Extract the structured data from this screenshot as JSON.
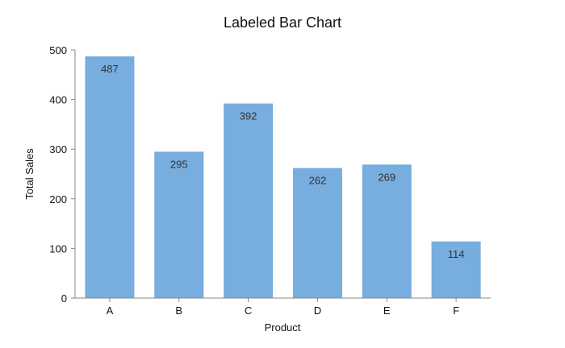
{
  "chart_data": {
    "type": "bar",
    "title": "Labeled Bar Chart",
    "xlabel": "Product",
    "ylabel": "Total Sales",
    "categories": [
      "A",
      "B",
      "C",
      "D",
      "E",
      "F"
    ],
    "values": [
      487,
      295,
      392,
      262,
      269,
      114
    ],
    "data_labels": [
      "487",
      "295",
      "392",
      "262",
      "269",
      "114"
    ],
    "ylim": [
      0,
      500
    ],
    "y_ticks": [
      0,
      100,
      200,
      300,
      400,
      500
    ],
    "grid": false,
    "legend": "none",
    "colors": {
      "bar": "#77ADDF",
      "label": "#333333",
      "axis": "#888888"
    }
  }
}
